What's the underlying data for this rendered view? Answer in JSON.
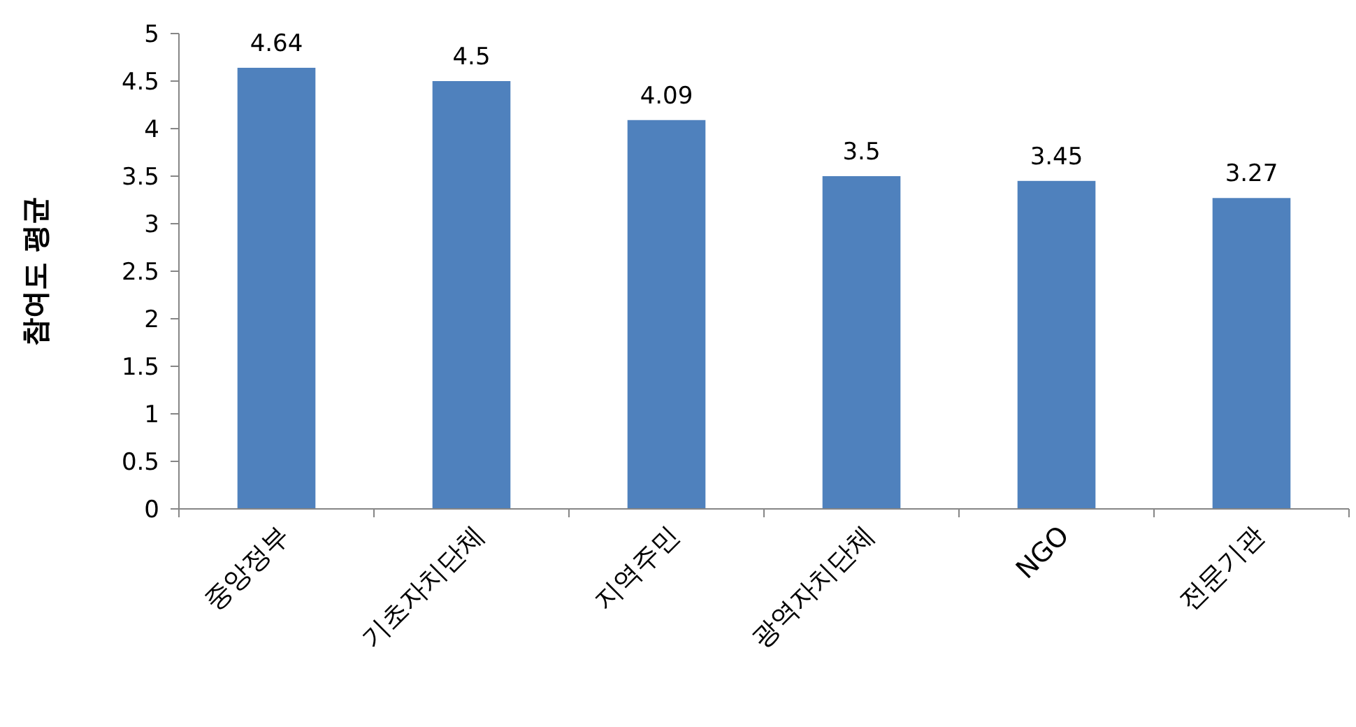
{
  "chart_data": {
    "type": "bar",
    "ylabel": "참여도 평균",
    "categories": [
      "중앙정부",
      "기초자치단체",
      "지역주민",
      "광역자치단체",
      "NGO",
      "전문기관"
    ],
    "values": [
      4.64,
      4.5,
      4.09,
      3.5,
      3.45,
      3.27
    ],
    "color": "#4f81bd",
    "data_labels": true,
    "ylim": [
      0,
      5
    ],
    "yticks": [
      0,
      0.5,
      1,
      1.5,
      2,
      2.5,
      3,
      3.5,
      4,
      4.5,
      5
    ]
  }
}
